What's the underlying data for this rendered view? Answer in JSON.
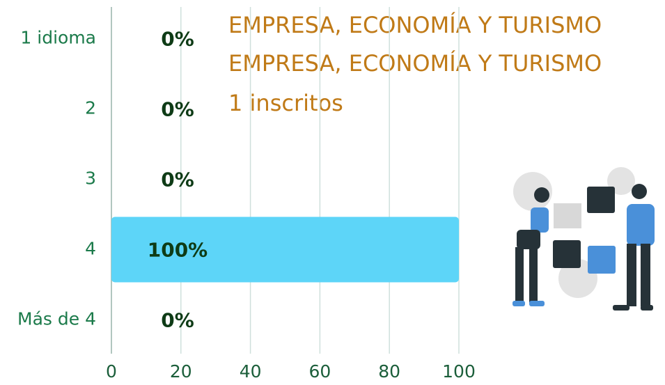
{
  "chart_data": {
    "type": "bar",
    "orientation": "horizontal",
    "title": "EMPRESA, ECONOMÍA Y TURISMO",
    "subtitle": "EMPRESA, ECONOMÍA Y TURISMO",
    "caption": "1 inscritos",
    "categories": [
      "1 idioma",
      "2",
      "3",
      "4",
      "Más de 4"
    ],
    "values": [
      0,
      0,
      0,
      100,
      0
    ],
    "value_labels": [
      "0%",
      "0%",
      "0%",
      "100%",
      "0%"
    ],
    "color": "#5dd5f8",
    "xlim": [
      0,
      100
    ],
    "xticks": [
      0,
      20,
      40,
      60,
      80,
      100
    ],
    "grid": true
  }
}
